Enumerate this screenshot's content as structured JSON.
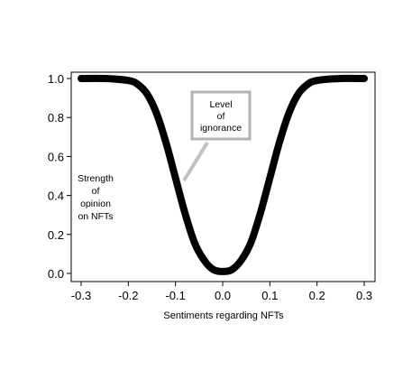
{
  "chart_data": {
    "type": "line",
    "title": "",
    "xlabel": "Sentiments regarding NFTs",
    "ylabel": "",
    "xlim": [
      -0.3,
      0.3
    ],
    "ylim": [
      0.0,
      1.0
    ],
    "x_ticks": [
      -0.3,
      -0.2,
      -0.1,
      0.0,
      0.1,
      0.2,
      0.3
    ],
    "x_tick_labels": [
      "-0.3",
      "-0.2",
      "-0.1",
      "0.0",
      "0.1",
      "0.2",
      "0.3"
    ],
    "y_ticks": [
      0.0,
      0.2,
      0.4,
      0.6,
      0.8,
      1.0
    ],
    "y_tick_labels": [
      "0.0",
      "0.2",
      "0.4",
      "0.6",
      "0.8",
      "1.0"
    ],
    "grid": false,
    "legend": "none",
    "line_color": "#000000",
    "series": [
      {
        "x": [
          -0.3,
          -0.25,
          -0.2,
          -0.18,
          -0.16,
          -0.14,
          -0.12,
          -0.1,
          -0.08,
          -0.06,
          -0.04,
          -0.02,
          0.0,
          0.02,
          0.04,
          0.06,
          0.08,
          0.1,
          0.12,
          0.14,
          0.16,
          0.18,
          0.2,
          0.25,
          0.3
        ],
        "y": [
          1.0,
          1.0,
          0.99,
          0.97,
          0.92,
          0.82,
          0.67,
          0.49,
          0.31,
          0.16,
          0.07,
          0.02,
          0.01,
          0.02,
          0.07,
          0.16,
          0.31,
          0.49,
          0.67,
          0.82,
          0.92,
          0.97,
          0.99,
          1.0,
          1.0
        ]
      }
    ],
    "annotations": [
      {
        "lines": [
          "Strength",
          "of",
          "opinion",
          "on NFTs"
        ]
      },
      {
        "lines": [
          "Level",
          "of",
          "ignorance"
        ],
        "box_color": "#b3b3b3",
        "pointer_color": "#c0c0c0"
      }
    ]
  }
}
